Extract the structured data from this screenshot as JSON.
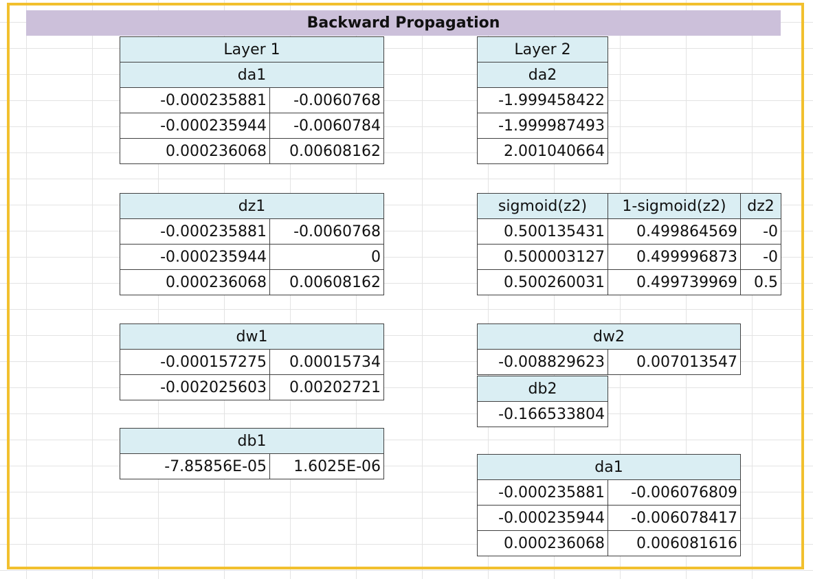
{
  "title": "Backward Propagation",
  "colors": {
    "title_bg": "#ccc0da",
    "header_bg": "#daeef3",
    "frame": "#f2c02e",
    "grid": "#e3e3e3"
  },
  "layer1": {
    "label": "Layer 1",
    "da1": {
      "header": "da1",
      "rows": [
        [
          "-0.000235881",
          "-0.0060768"
        ],
        [
          "-0.000235944",
          "-0.0060784"
        ],
        [
          "0.000236068",
          "0.00608162"
        ]
      ]
    },
    "dz1": {
      "header": "dz1",
      "rows": [
        [
          "-0.000235881",
          "-0.0060768"
        ],
        [
          "-0.000235944",
          "0"
        ],
        [
          "0.000236068",
          "0.00608162"
        ]
      ]
    },
    "dw1": {
      "header": "dw1",
      "rows": [
        [
          "-0.000157275",
          "0.00015734"
        ],
        [
          "-0.002025603",
          "0.00202721"
        ]
      ]
    },
    "db1": {
      "header": "db1",
      "rows": [
        [
          "-7.85856E-05",
          "1.6025E-06"
        ]
      ]
    }
  },
  "layer2": {
    "label": "Layer 2",
    "da2": {
      "header": "da2",
      "rows": [
        [
          "-1.999458422"
        ],
        [
          "-1.999987493"
        ],
        [
          "2.001040664"
        ]
      ]
    },
    "sigmoid": {
      "headers": [
        "sigmoid(z2)",
        "1-sigmoid(z2)",
        "dz2"
      ],
      "rows": [
        [
          "0.500135431",
          "0.499864569",
          "-0"
        ],
        [
          "0.500003127",
          "0.499996873",
          "-0"
        ],
        [
          "0.500260031",
          "0.499739969",
          "0.5"
        ]
      ]
    },
    "dw2": {
      "header": "dw2",
      "rows": [
        [
          "-0.008829623",
          "0.007013547"
        ]
      ]
    },
    "db2": {
      "header": "db2",
      "rows": [
        [
          "-0.166533804"
        ]
      ]
    },
    "da1": {
      "header": "da1",
      "rows": [
        [
          "-0.000235881",
          "-0.006076809"
        ],
        [
          "-0.000235944",
          "-0.006078417"
        ],
        [
          "0.000236068",
          "0.006081616"
        ]
      ]
    }
  }
}
